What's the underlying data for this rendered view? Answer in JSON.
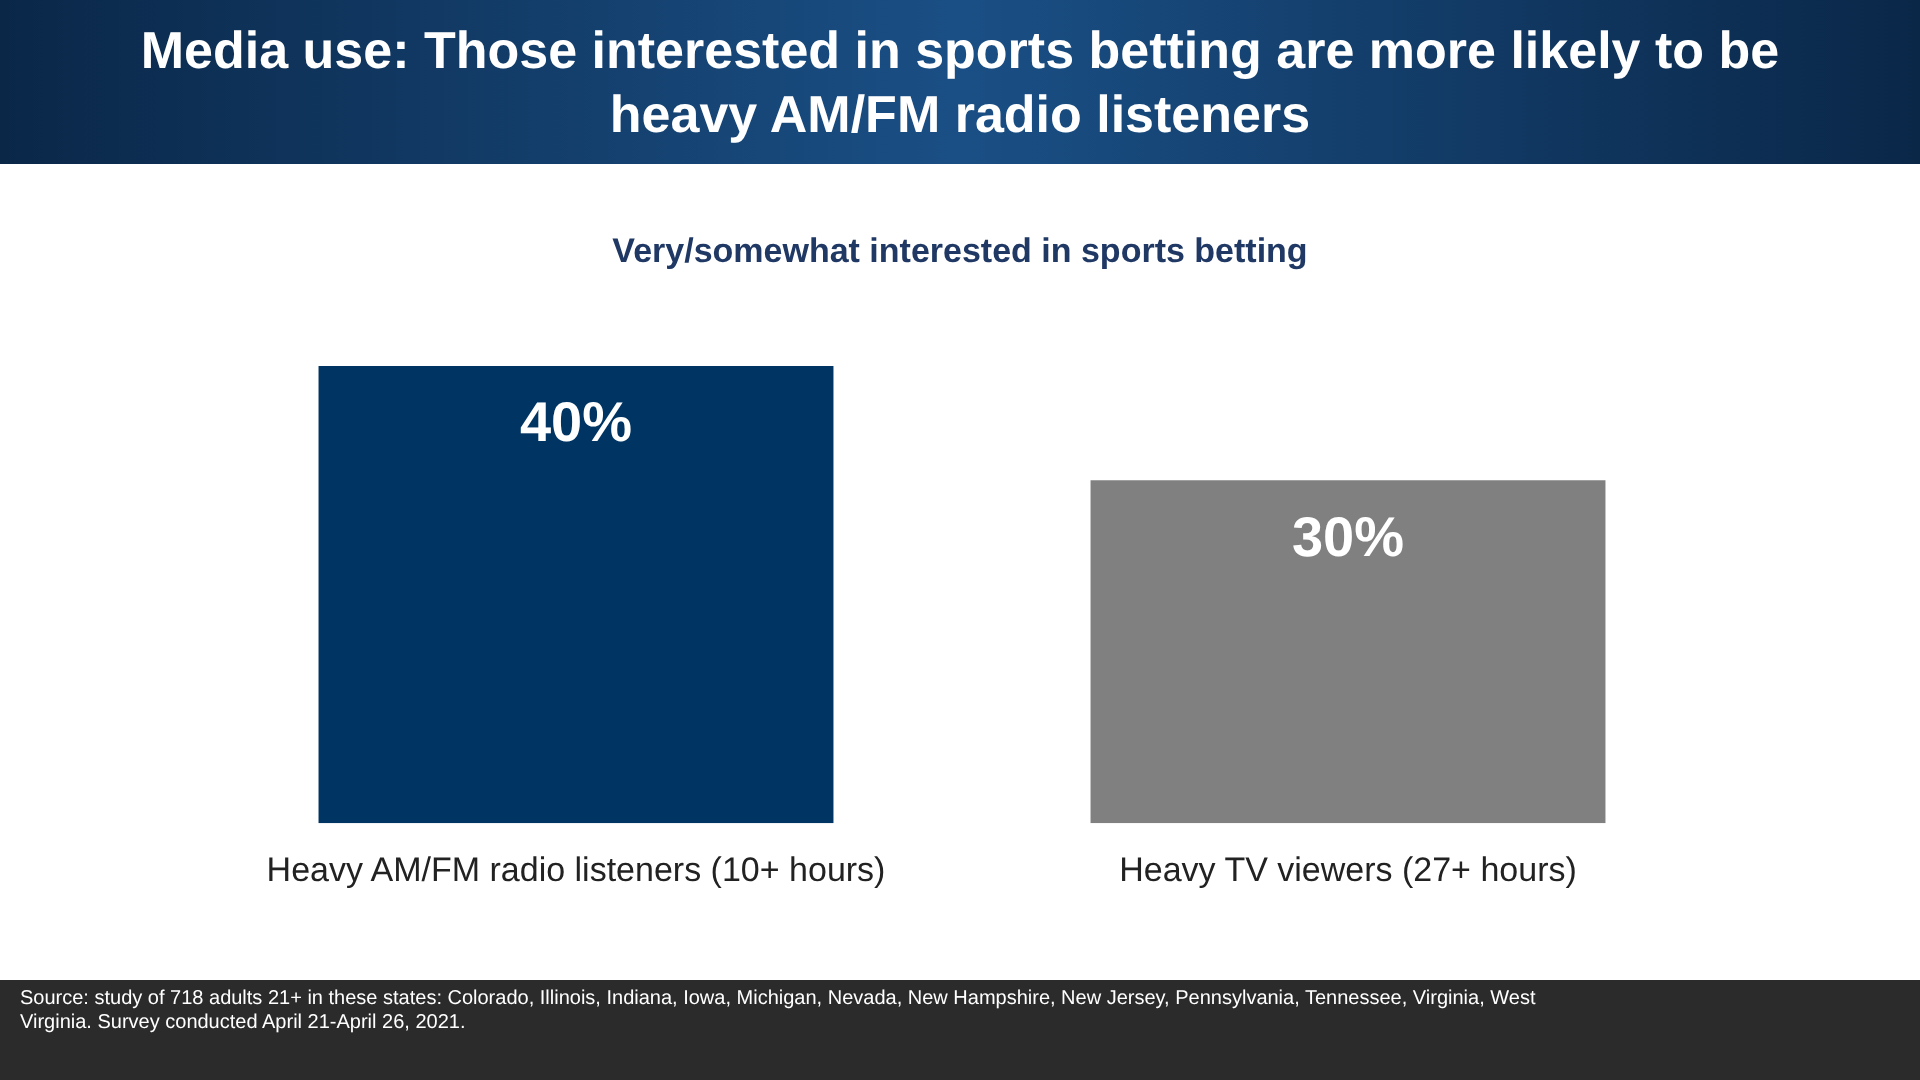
{
  "chart_data": {
    "type": "bar",
    "title": "Media use: Those interested in sports betting are more likely to be heavy AM/FM radio listeners",
    "subtitle": "Very/somewhat interested in sports betting",
    "categories": [
      "Heavy AM/FM radio listeners (10+ hours)",
      "Heavy TV viewers (27+ hours)"
    ],
    "values": [
      40,
      30
    ],
    "colors": [
      "#003462",
      "#808080"
    ],
    "value_labels": [
      "40%",
      "30%"
    ],
    "ylim": [
      0,
      40
    ],
    "tick_labels": "x",
    "grid": false,
    "legend": false,
    "annotations": [
      "Source: study of 718 adults 21+ in these states: Colorado, Illinois, Indiana, Iowa, Michigan, Nevada, New Hampshire, New Jersey, Pennsylvania, Tennessee, Virginia, West Virginia. Survey conducted April 21-April 26, 2021."
    ]
  }
}
